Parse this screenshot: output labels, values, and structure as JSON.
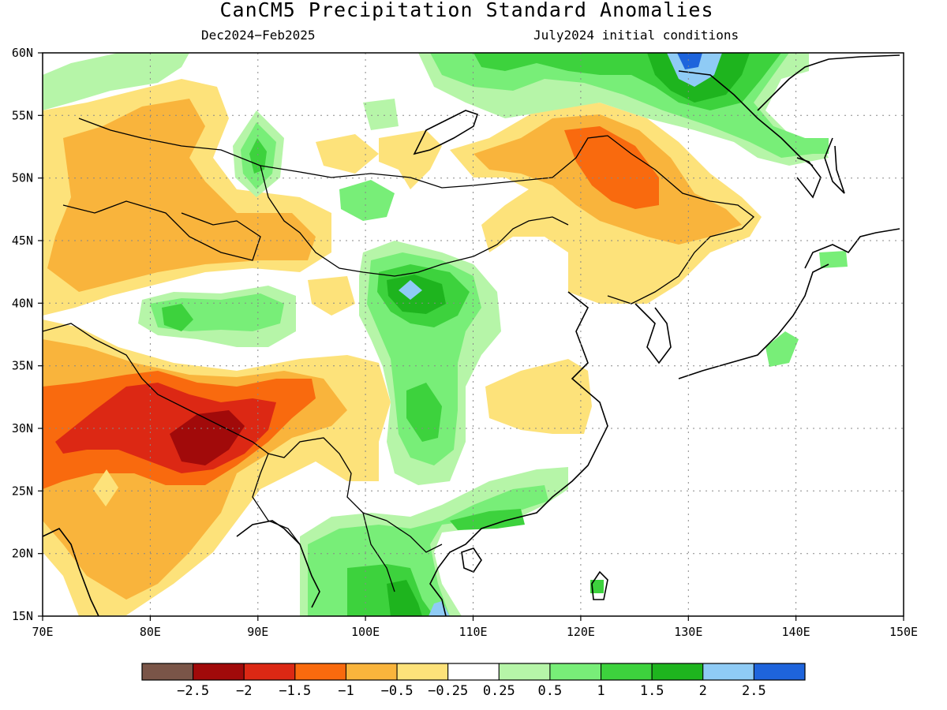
{
  "title": "CanCM5 Precipitation Standard Anomalies",
  "subtitle_left": "Dec2024−Feb2025",
  "subtitle_right": "July2024 initial conditions",
  "map": {
    "lon_range": [
      70,
      150
    ],
    "lat_range": [
      15,
      60
    ],
    "lon_ticks": [
      "70E",
      "80E",
      "90E",
      "100E",
      "110E",
      "120E",
      "130E",
      "140E",
      "150E"
    ],
    "lat_ticks": [
      "60N",
      "55N",
      "50N",
      "45N",
      "40N",
      "35N",
      "30N",
      "25N",
      "20N",
      "15N"
    ],
    "gridlines": "dotted",
    "colors": {
      "le_-2.5": "#7a5548",
      "-2.5_-2": "#a10a0a",
      "-2_-1.5": "#dc2814",
      "-1.5_-1": "#f96a0e",
      "-1_-0.5": "#f9b43c",
      "-0.5_-0.25": "#fde27a",
      "neutral": "#ffffff",
      "0.25_0.5": "#b6f5a8",
      "0.5_1": "#78ee78",
      "1_1.5": "#3dd23d",
      "1.5_2": "#1eb41e",
      "2_2.5": "#8fcbf5",
      "ge_2.5": "#1e64dc"
    }
  },
  "colorbar": {
    "colors": [
      "#7a5548",
      "#a10a0a",
      "#dc2814",
      "#f96a0e",
      "#f9b43c",
      "#fde27a",
      "#ffffff",
      "#b6f5a8",
      "#78ee78",
      "#3dd23d",
      "#1eb41e",
      "#8fcbf5",
      "#1e64dc"
    ],
    "labels": [
      "−2.5",
      "−2",
      "−1.5",
      "−1",
      "−0.5",
      "−0.25",
      "0.25",
      "0.5",
      "1",
      "1.5",
      "2",
      "2.5"
    ]
  }
}
